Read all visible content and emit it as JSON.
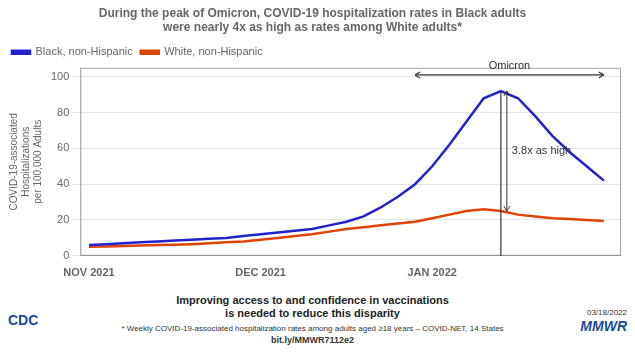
{
  "chart_data": {
    "type": "line",
    "title": [
      "During the peak of Omicron, COVID-19 hospitalization rates in Black adults",
      "were nearly 4x as high as rates among White adults*"
    ],
    "ylabel": "COVID-19-associated\nHospitalizations\nper 100,000 Adults",
    "series": [
      {
        "name": "Black, non-Hispanic",
        "color": "#2222cc",
        "x": [
          0,
          2,
          4,
          6,
          8,
          10,
          12,
          14,
          16,
          18,
          20,
          22,
          24,
          26,
          28,
          30,
          32,
          34,
          36,
          38,
          40,
          42,
          44,
          46,
          48,
          50,
          52,
          54,
          56,
          58,
          60
        ],
        "values": [
          6,
          6.5,
          7,
          7.5,
          8,
          8.5,
          9,
          9.5,
          10,
          11,
          12,
          13,
          14,
          15,
          17,
          19,
          22,
          27,
          33,
          40,
          50,
          62,
          75,
          88,
          92,
          88,
          78,
          67,
          58,
          50,
          42
        ]
      },
      {
        "name": "White, non-Hispanic",
        "color": "#dd4400",
        "x": [
          0,
          2,
          4,
          6,
          8,
          10,
          12,
          14,
          16,
          18,
          20,
          22,
          24,
          26,
          28,
          30,
          32,
          34,
          36,
          38,
          40,
          42,
          44,
          46,
          48,
          50,
          52,
          54,
          56,
          58,
          60
        ],
        "values": [
          5,
          5.2,
          5.5,
          5.7,
          6,
          6.2,
          6.5,
          7,
          7.5,
          8,
          9,
          10,
          11,
          12,
          13.5,
          15,
          16,
          17,
          18,
          19,
          21,
          23,
          25,
          26,
          25,
          23,
          22,
          21,
          20.5,
          20,
          19.5
        ]
      }
    ],
    "xlim": [
      -1,
      62
    ],
    "xticks": [
      {
        "value": 0,
        "label": "NOV 2021"
      },
      {
        "value": 20,
        "label": "DEC 2021"
      },
      {
        "value": 40,
        "label": "JAN 2022"
      }
    ],
    "ylim": [
      0,
      105
    ],
    "yticks": [
      0,
      20,
      40,
      60,
      80,
      100
    ],
    "grid": true,
    "legend": "upper left",
    "annotations": [
      {
        "text": "Omicron",
        "x": [
          38,
          60
        ],
        "y": 101
      },
      {
        "text": "3.8x as high",
        "x": 48,
        "y": [
          25,
          92
        ]
      }
    ],
    "footer_text": "Improving access to and confidence in vaccinations\nis needed to reduce this disparity",
    "footnote": "* Weekly COVID-19-associated hospitalization rates among adults aged ≥18 years – COVID-NET, 14 States",
    "url": "bit.ly/MMWR7112e2",
    "date": "03/18/2022",
    "logos": [
      "CDC",
      "MMWR"
    ]
  }
}
